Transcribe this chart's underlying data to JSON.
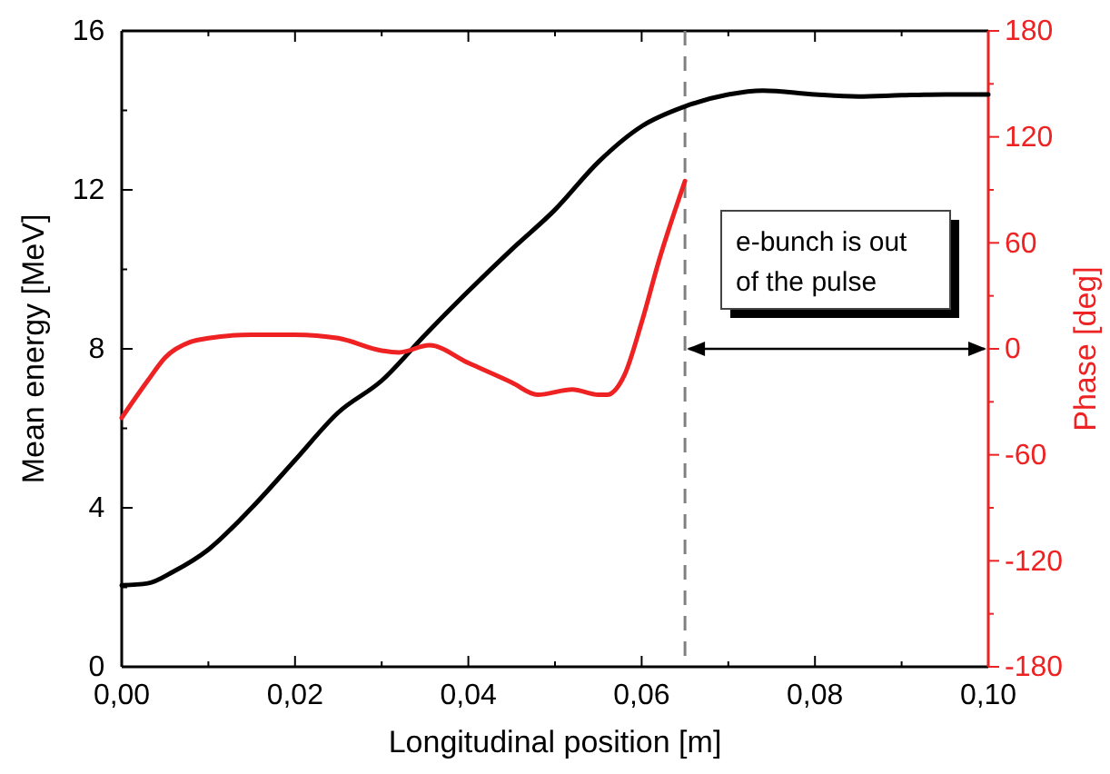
{
  "chart_data": {
    "type": "line",
    "xlabel": "Longitudinal position [m]",
    "ylabel": "Mean energy [MeV]",
    "y2label": "Phase [deg]",
    "xlim": [
      0,
      0.1
    ],
    "xticks": [
      {
        "value": 0,
        "label": "0,00"
      },
      {
        "value": 0.01,
        "label": null
      },
      {
        "value": 0.02,
        "label": "0,02"
      },
      {
        "value": 0.03,
        "label": null
      },
      {
        "value": 0.04,
        "label": "0,04"
      },
      {
        "value": 0.05,
        "label": null
      },
      {
        "value": 0.06,
        "label": "0,06"
      },
      {
        "value": 0.07,
        "label": null
      },
      {
        "value": 0.08,
        "label": "0,08"
      },
      {
        "value": 0.09,
        "label": null
      },
      {
        "value": 0.1,
        "label": "0,10"
      }
    ],
    "ylim": [
      0,
      16
    ],
    "yticks": [
      0,
      {
        "value": 2,
        "label": null
      },
      4,
      {
        "value": 6,
        "label": null
      },
      8,
      {
        "value": 10,
        "label": null
      },
      12,
      {
        "value": 14,
        "label": null
      },
      16
    ],
    "y2lim": [
      -180,
      180
    ],
    "y2ticks": [
      -180,
      {
        "value": -150,
        "label": null
      },
      -120,
      {
        "value": -90,
        "label": null
      },
      -60,
      {
        "value": -30,
        "label": null
      },
      0,
      {
        "value": 30,
        "label": null
      },
      60,
      {
        "value": 90,
        "label": null
      },
      120,
      {
        "value": 150,
        "label": null
      },
      180
    ],
    "line_style": "solid",
    "marker": "none",
    "series": [
      {
        "color": "#000000",
        "x": [
          0,
          0.003,
          0.006,
          0.01,
          0.015,
          0.02,
          0.025,
          0.03,
          0.035,
          0.04,
          0.045,
          0.05,
          0.055,
          0.06,
          0.065,
          0.07,
          0.074,
          0.08,
          0.085,
          0.09,
          0.095,
          0.1
        ],
        "values": [
          2.05,
          2.1,
          2.4,
          2.95,
          4.0,
          5.2,
          6.4,
          7.2,
          8.35,
          9.45,
          10.5,
          11.5,
          12.7,
          13.6,
          14.1,
          14.4,
          14.5,
          14.4,
          14.35,
          14.38,
          14.4,
          14.4
        ]
      },
      {
        "color": "#ee2222",
        "axis": "y2",
        "x": [
          0,
          0.003,
          0.005,
          0.008,
          0.01,
          0.015,
          0.02,
          0.025,
          0.03,
          0.032,
          0.0355,
          0.04,
          0.045,
          0.048,
          0.052,
          0.055,
          0.056,
          0.058,
          0.06,
          0.062,
          0.065
        ],
        "values": [
          -39,
          -18,
          -5,
          4,
          6,
          8,
          8,
          6,
          -1,
          -2,
          2,
          -8,
          -19,
          -26,
          -23,
          -26,
          -26,
          -15,
          15,
          50,
          95
        ]
      }
    ],
    "ref_lines": [
      {
        "axis": "x",
        "value": 0.065,
        "color": "#808080",
        "line_style": "dashed"
      }
    ],
    "annotations": [
      "e-bunch is out of the pulse"
    ]
  }
}
